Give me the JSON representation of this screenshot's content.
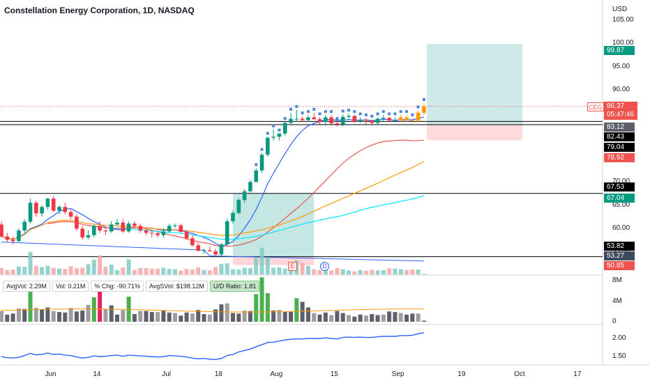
{
  "title": "Constellation Energy Corporation, 1D, NASDAQ",
  "currency": "USD",
  "stats": {
    "avg_vol": "AvgVol: 2.29M",
    "vol": "Vol: 0.21M",
    "pct_chg": "% Chg: -90.71%",
    "avg_dvol": "AvgSVol: $198.12M",
    "ud_ratio": "U/D Ratio: 1.81"
  },
  "markers": {
    "earnings": "E",
    "dividend": "D"
  },
  "price_axis": [
    "105.00",
    "100.00",
    "95.00",
    "90.00",
    "85.00",
    "80.00",
    "75.00",
    "70.00",
    "65.00",
    "60.00",
    "55.00"
  ],
  "volume_axis": [
    "8M",
    "4M",
    "0"
  ],
  "ratio_axis": [
    "2.00",
    "1.50"
  ],
  "x_axis": [
    "Jun",
    "14",
    "Jul",
    "18",
    "Aug",
    "15",
    "Sep",
    "19",
    "Oct",
    "17"
  ],
  "price_tags": {
    "target": "99.87",
    "ceg_symbol": "CEG",
    "ceg_price": "86.37",
    "ceg_countdown": "05:47:46",
    "t8312": "83.12",
    "t8243": "82.43",
    "t7904": "79.04",
    "t7892": "78.92",
    "t6753": "67.53",
    "t6704": "67.04",
    "t5382": "53.82",
    "t5327": "53.27",
    "t5085": "50.85"
  },
  "colors": {
    "up": "#089981",
    "down": "#f23645",
    "ma_red": "#ef5350",
    "ma_orange": "#ff9800",
    "ma_cyan": "#00e5ff",
    "ma_blue": "#2962ff",
    "target_zone": "#b2dfdb",
    "stop_zone": "#ffcdd2"
  },
  "chart_data": [
    {
      "type": "candlestick",
      "title": "Constellation Energy Corporation, 1D, NASDAQ",
      "ylim": [
        50,
        107
      ],
      "dates": [
        "05-23",
        "05-24",
        "05-25",
        "05-26",
        "05-27",
        "05-31",
        "06-01",
        "06-02",
        "06-03",
        "06-06",
        "06-07",
        "06-08",
        "06-09",
        "06-10",
        "06-13",
        "06-14",
        "06-15",
        "06-16",
        "06-17",
        "06-21",
        "06-22",
        "06-23",
        "06-24",
        "06-27",
        "06-28",
        "06-29",
        "06-30",
        "07-01",
        "07-05",
        "07-06",
        "07-07",
        "07-08",
        "07-11",
        "07-12",
        "07-13",
        "07-14",
        "07-15",
        "07-18",
        "07-19",
        "07-20",
        "07-21",
        "07-22",
        "07-25",
        "07-26",
        "07-27",
        "07-28",
        "07-29",
        "08-01",
        "08-02",
        "08-03",
        "08-04",
        "08-05",
        "08-08",
        "08-09",
        "08-10",
        "08-11",
        "08-12",
        "08-15",
        "08-16",
        "08-17",
        "08-18",
        "08-19",
        "08-22",
        "08-23",
        "08-24",
        "08-25",
        "08-26",
        "08-29",
        "08-30",
        "08-31",
        "09-01",
        "09-02",
        "09-06",
        "09-07"
      ],
      "open": [
        60.8,
        58.2,
        57.5,
        57.2,
        59.5,
        61.4,
        65.5,
        63.2,
        64.6,
        66.4,
        63.8,
        64.6,
        63.5,
        62.5,
        59.9,
        58.0,
        58.5,
        60.5,
        59.5,
        59.3,
        60.8,
        61.2,
        59.3,
        61.0,
        60.5,
        59.5,
        59.0,
        58.9,
        58.5,
        59.3,
        60.5,
        60.6,
        59.2,
        57.8,
        56.3,
        55.1,
        55.2,
        55.0,
        54.3,
        56.5,
        61.5,
        63.3,
        66.1,
        68.0,
        70.0,
        72.5,
        75.9,
        79.6,
        79.8,
        80.5,
        82.8,
        83.7,
        83.7,
        83.4,
        84.0,
        83.6,
        83.0,
        84.0,
        82.7,
        82.5,
        84.1,
        84.3,
        83.1,
        83.5,
        83.3,
        82.8,
        83.7,
        83.9,
        83.3,
        83.3,
        84.0,
        83.4,
        83.3,
        85.0
      ],
      "high": [
        61.5,
        59.0,
        58.2,
        60.0,
        61.9,
        66.4,
        66.0,
        65.0,
        66.6,
        67.0,
        65.0,
        65.5,
        64.0,
        63.0,
        60.5,
        59.5,
        60.8,
        61.5,
        60.0,
        61.5,
        62.0,
        62.0,
        61.5,
        61.5,
        61.0,
        60.0,
        59.5,
        59.5,
        60.0,
        60.9,
        61.0,
        61.0,
        59.5,
        58.5,
        56.8,
        55.5,
        56.0,
        55.5,
        56.8,
        62.0,
        63.8,
        66.5,
        68.5,
        70.5,
        73.0,
        76.3,
        79.8,
        81.4,
        80.5,
        83.0,
        85.0,
        85.6,
        84.2,
        84.5,
        85.0,
        84.0,
        84.5,
        84.5,
        83.0,
        84.6,
        84.8,
        84.5,
        84.0,
        83.8,
        83.5,
        84.0,
        84.5,
        84.0,
        84.0,
        84.5,
        84.5,
        83.8,
        85.5,
        87.1
      ],
      "low": [
        58.0,
        57.0,
        56.5,
        57.0,
        59.0,
        61.0,
        62.5,
        62.5,
        64.0,
        63.5,
        63.0,
        63.0,
        62.0,
        59.5,
        57.5,
        57.5,
        58.0,
        59.0,
        58.5,
        59.0,
        60.5,
        59.0,
        59.0,
        60.0,
        59.0,
        58.5,
        58.0,
        58.0,
        58.0,
        59.0,
        60.0,
        59.0,
        57.5,
        56.0,
        55.0,
        54.5,
        55.0,
        54.0,
        54.0,
        56.0,
        61.0,
        63.0,
        65.5,
        67.5,
        70.0,
        72.0,
        75.5,
        79.0,
        79.0,
        80.0,
        82.5,
        83.0,
        83.0,
        83.0,
        83.5,
        82.5,
        82.5,
        82.5,
        82.0,
        82.0,
        83.5,
        82.8,
        82.8,
        82.5,
        82.5,
        82.5,
        83.0,
        83.0,
        83.0,
        83.0,
        83.0,
        82.8,
        83.0,
        84.5
      ],
      "close": [
        58.2,
        57.5,
        57.2,
        59.5,
        61.4,
        65.5,
        63.2,
        64.6,
        66.4,
        63.8,
        64.6,
        63.5,
        62.5,
        59.9,
        58.0,
        58.5,
        60.5,
        59.5,
        59.3,
        60.8,
        61.2,
        59.3,
        61.0,
        60.5,
        59.5,
        59.0,
        58.9,
        58.5,
        59.3,
        60.5,
        60.6,
        59.2,
        57.8,
        56.3,
        55.1,
        55.2,
        55.0,
        54.3,
        56.5,
        61.5,
        63.3,
        66.1,
        68.0,
        70.0,
        72.5,
        75.9,
        79.6,
        79.8,
        80.5,
        82.8,
        83.7,
        83.7,
        83.4,
        84.0,
        83.6,
        83.0,
        84.0,
        82.7,
        82.5,
        84.1,
        84.3,
        83.1,
        83.5,
        83.3,
        82.8,
        83.7,
        83.9,
        83.3,
        83.3,
        84.0,
        83.4,
        83.3,
        85.0,
        86.37
      ],
      "horizontal_lines": [
        83.12,
        82.43,
        67.53,
        53.82
      ],
      "long_position": {
        "entry": 82.43,
        "target": 99.87,
        "stop": 79.04
      },
      "base_box": {
        "top": 67.53,
        "bottom": 53.82
      },
      "moving_averages": [
        {
          "color": "#ef5350",
          "end_value": 79.04
        },
        {
          "color": "#ff9800",
          "end_value": 74.5
        },
        {
          "color": "#00e5ff",
          "end_value": 67.04
        },
        {
          "color": "#2962ff",
          "end_value": 53.27
        }
      ]
    },
    {
      "type": "bar",
      "title": "Volume",
      "ylim": [
        0,
        9
      ],
      "values": [
        2.1,
        1.4,
        1.6,
        2.6,
        2.5,
        7.2,
        2.7,
        2.4,
        2.8,
        2.1,
        1.9,
        1.8,
        2.7,
        2.0,
        2.2,
        3.3,
        4.8,
        6.2,
        2.5,
        3.2,
        1.4,
        2.3,
        4.9,
        1.5,
        2.1,
        2.1,
        1.9,
        1.9,
        2.2,
        1.8,
        1.7,
        1.2,
        1.8,
        1.6,
        2.3,
        1.5,
        1.4,
        2.4,
        3.4,
        3.6,
        1.7,
        1.6,
        2.2,
        2.1,
        5.4,
        8.7,
        5.6,
        2.2,
        2.3,
        1.9,
        2.0,
        4.6,
        3.9,
        2.8,
        1.7,
        1.4,
        1.8,
        1.3,
        2.1,
        1.7,
        1.3,
        1.0,
        1.4,
        1.2,
        1.5,
        1.3,
        1.4,
        2.0,
        1.9,
        1.7,
        1.4,
        1.6,
        1.6,
        0.21
      ],
      "avg_volume_label": "AvgVol: 2.29M"
    },
    {
      "type": "line",
      "title": "Relative strength",
      "ylim": [
        1.3,
        2.3
      ],
      "values": [
        1.49,
        1.46,
        1.45,
        1.47,
        1.52,
        1.58,
        1.54,
        1.55,
        1.59,
        1.55,
        1.56,
        1.53,
        1.52,
        1.48,
        1.45,
        1.47,
        1.51,
        1.49,
        1.5,
        1.52,
        1.53,
        1.5,
        1.53,
        1.52,
        1.51,
        1.5,
        1.49,
        1.48,
        1.49,
        1.52,
        1.51,
        1.5,
        1.48,
        1.45,
        1.43,
        1.44,
        1.42,
        1.41,
        1.44,
        1.52,
        1.55,
        1.62,
        1.66,
        1.7,
        1.76,
        1.82,
        1.88,
        1.89,
        1.92,
        1.95,
        1.97,
        1.98,
        1.98,
        1.99,
        1.99,
        1.99,
        2.01,
        1.99,
        1.98,
        2.02,
        2.03,
        2.02,
        2.03,
        2.02,
        2.02,
        2.04,
        2.05,
        2.05,
        2.05,
        2.07,
        2.07,
        2.08,
        2.12,
        2.15
      ]
    }
  ]
}
